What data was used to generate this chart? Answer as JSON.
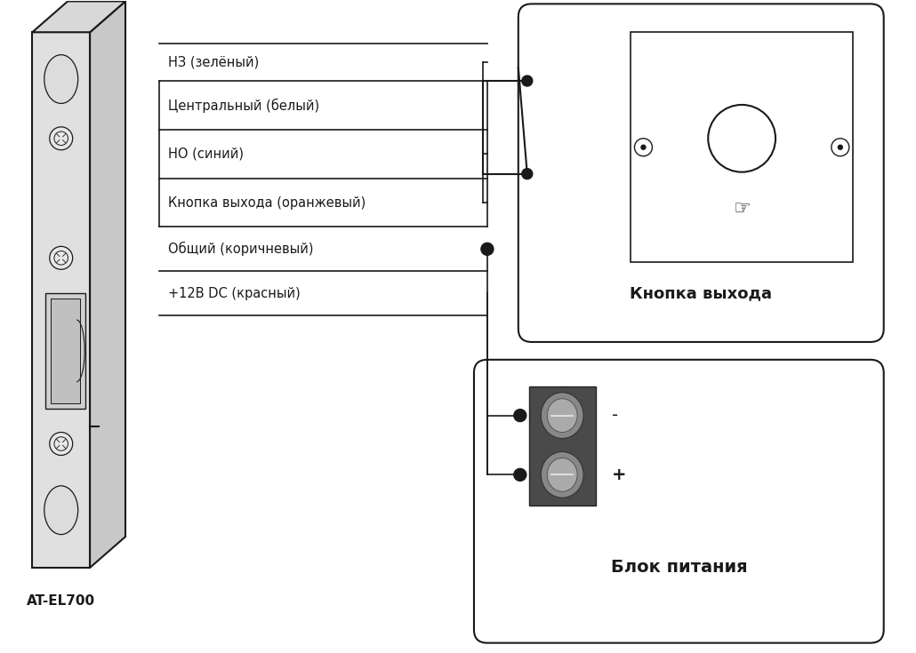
{
  "bg_color": "#ffffff",
  "line_color": "#1a1a1a",
  "wire_labels": [
    "НЗ (зелёный)",
    "Центральный (белый)",
    "НО (синий)",
    "Кнопка выхода (оранжевый)",
    "Общий (коричневый)",
    "+12В DC (красный)"
  ],
  "lock_label": "AT-EL700",
  "button_label": "Кнопка выхода",
  "power_label": "Блок питания",
  "minus_label": "-",
  "plus_label": "+"
}
